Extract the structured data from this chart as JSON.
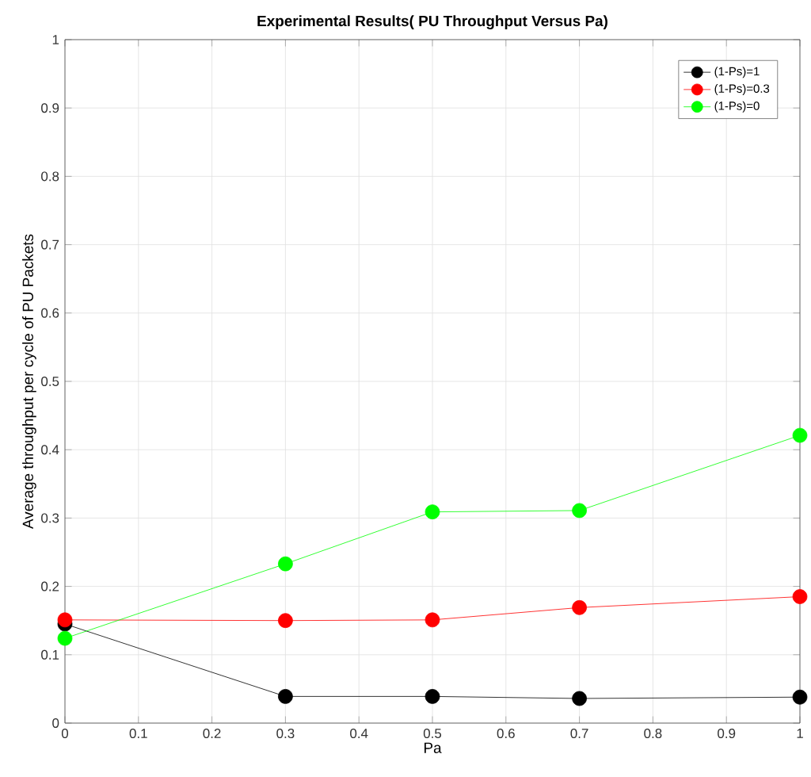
{
  "chart_data": {
    "type": "line",
    "title": "Experimental Results( PU Throughput Versus Pa)",
    "xlabel": "Pa",
    "ylabel": "Average throughput per cycle of PU Packets",
    "x": [
      0,
      0.3,
      0.5,
      0.7,
      1
    ],
    "series": [
      {
        "name": "(1-Ps)=1",
        "color": "#000000",
        "values": [
          0.145,
          0.039,
          0.039,
          0.036,
          0.038
        ]
      },
      {
        "name": "(1-Ps)=0.3",
        "color": "#ff0000",
        "values": [
          0.151,
          0.15,
          0.151,
          0.169,
          0.185
        ]
      },
      {
        "name": "(1-Ps)=0",
        "color": "#00ff00",
        "values": [
          0.124,
          0.233,
          0.309,
          0.311,
          0.421
        ]
      }
    ],
    "xlim": [
      0,
      1
    ],
    "ylim": [
      0,
      1
    ],
    "xticks": [
      0,
      0.1,
      0.2,
      0.3,
      0.4,
      0.5,
      0.6,
      0.7,
      0.8,
      0.9,
      1
    ],
    "yticks": [
      0,
      0.1,
      0.2,
      0.3,
      0.4,
      0.5,
      0.6,
      0.7,
      0.8,
      0.9,
      1
    ],
    "grid": true,
    "legend": "top right",
    "marker": "circle",
    "line_style": "solid"
  }
}
